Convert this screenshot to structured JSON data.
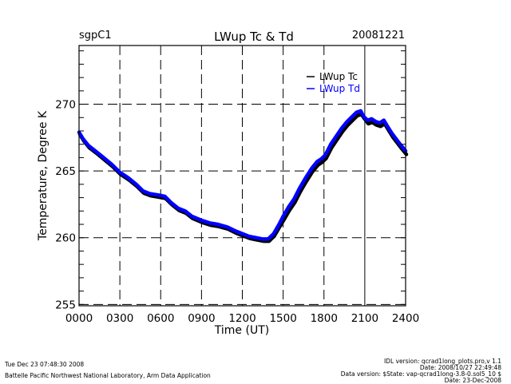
{
  "header": {
    "site": "sgpC1",
    "date": "20081221"
  },
  "footer": {
    "generated": "Tue Dec 23 07:48:30 2008",
    "org": "Battelle Pacific Northwest National Laboratory, Arm Data Application",
    "idl_version": "IDL version: qcrad1long_plots.pro,v 1.1",
    "idl_date": "Date: 2008/10/27 22:49:48",
    "data_version": "Data version: $State: vap-qcrad1long-3.8-0.sol5_10 $",
    "data_date": "Date: 23-Dec-2008"
  },
  "chart_data": {
    "type": "line",
    "title": "LWup Tc & Td",
    "xlabel": "Time (UT)",
    "ylabel": "Temperature, Degree K",
    "xlim": [
      0,
      24
    ],
    "ylim": [
      254.9,
      274.4
    ],
    "x_ticks": [
      0,
      3,
      6,
      9,
      12,
      15,
      18,
      21,
      24
    ],
    "x_tick_labels": [
      "0000",
      "0300",
      "0600",
      "0900",
      "1200",
      "1500",
      "1800",
      "2100",
      "2400"
    ],
    "y_ticks": [
      255,
      260,
      265,
      270
    ],
    "y_tick_labels": [
      "255",
      "260",
      "265",
      "270"
    ],
    "y_minor_step": 1,
    "grid": true,
    "legend": "top-right",
    "series": [
      {
        "name": "LWup Tc",
        "color": "#000000",
        "x": [
          0.0,
          0.3,
          0.7,
          1.2,
          1.8,
          2.4,
          3.0,
          3.6,
          4.2,
          4.7,
          5.2,
          5.8,
          6.3,
          6.8,
          7.3,
          7.8,
          8.3,
          9.0,
          9.6,
          10.2,
          10.9,
          11.5,
          12.0,
          12.5,
          13.0,
          13.5,
          13.9,
          14.3,
          14.7,
          15.0,
          15.4,
          15.8,
          16.2,
          16.6,
          17.1,
          17.5,
          17.8,
          18.1,
          18.5,
          18.9,
          19.3,
          19.7,
          20.1,
          20.4,
          20.7,
          20.9,
          21.2,
          21.5,
          21.8,
          22.1,
          22.4,
          22.7,
          23.0,
          23.3,
          23.6,
          24.0
        ],
        "y": [
          267.8,
          267.3,
          266.8,
          266.4,
          265.9,
          265.4,
          264.8,
          264.4,
          263.9,
          263.4,
          263.2,
          263.1,
          263.0,
          262.5,
          262.1,
          261.9,
          261.5,
          261.2,
          261.0,
          260.9,
          260.7,
          260.4,
          260.2,
          260.0,
          259.9,
          259.8,
          259.8,
          260.2,
          260.9,
          261.4,
          262.1,
          262.7,
          263.5,
          264.2,
          265.0,
          265.5,
          265.7,
          266.0,
          266.8,
          267.4,
          268.0,
          268.5,
          268.9,
          269.2,
          269.3,
          269.0,
          268.6,
          268.7,
          268.5,
          268.4,
          268.6,
          268.1,
          267.6,
          267.2,
          266.8,
          266.3
        ]
      },
      {
        "name": "LWup Td",
        "color": "#0000ff",
        "x": [
          0.0,
          0.3,
          0.7,
          1.2,
          1.8,
          2.4,
          3.0,
          3.6,
          4.2,
          4.7,
          5.2,
          5.8,
          6.3,
          6.8,
          7.3,
          7.8,
          8.3,
          9.0,
          9.6,
          10.2,
          10.9,
          11.5,
          12.0,
          12.5,
          13.0,
          13.5,
          13.9,
          14.3,
          14.7,
          15.0,
          15.4,
          15.8,
          16.2,
          16.6,
          17.1,
          17.5,
          17.8,
          18.1,
          18.5,
          18.9,
          19.3,
          19.7,
          20.1,
          20.4,
          20.7,
          20.9,
          21.2,
          21.5,
          21.8,
          22.1,
          22.4,
          22.7,
          23.0,
          23.3,
          23.6,
          24.0
        ],
        "y": [
          267.9,
          267.4,
          266.9,
          266.5,
          266.0,
          265.5,
          264.9,
          264.5,
          264.0,
          263.5,
          263.3,
          263.2,
          263.1,
          262.6,
          262.2,
          262.0,
          261.6,
          261.3,
          261.1,
          261.0,
          260.8,
          260.5,
          260.3,
          260.1,
          260.0,
          259.9,
          259.9,
          260.3,
          261.0,
          261.6,
          262.3,
          262.9,
          263.7,
          264.4,
          265.2,
          265.7,
          265.9,
          266.2,
          267.0,
          267.6,
          268.2,
          268.7,
          269.1,
          269.4,
          269.5,
          269.1,
          268.8,
          268.9,
          268.7,
          268.6,
          268.8,
          268.3,
          267.8,
          267.4,
          267.0,
          266.5
        ]
      }
    ]
  }
}
